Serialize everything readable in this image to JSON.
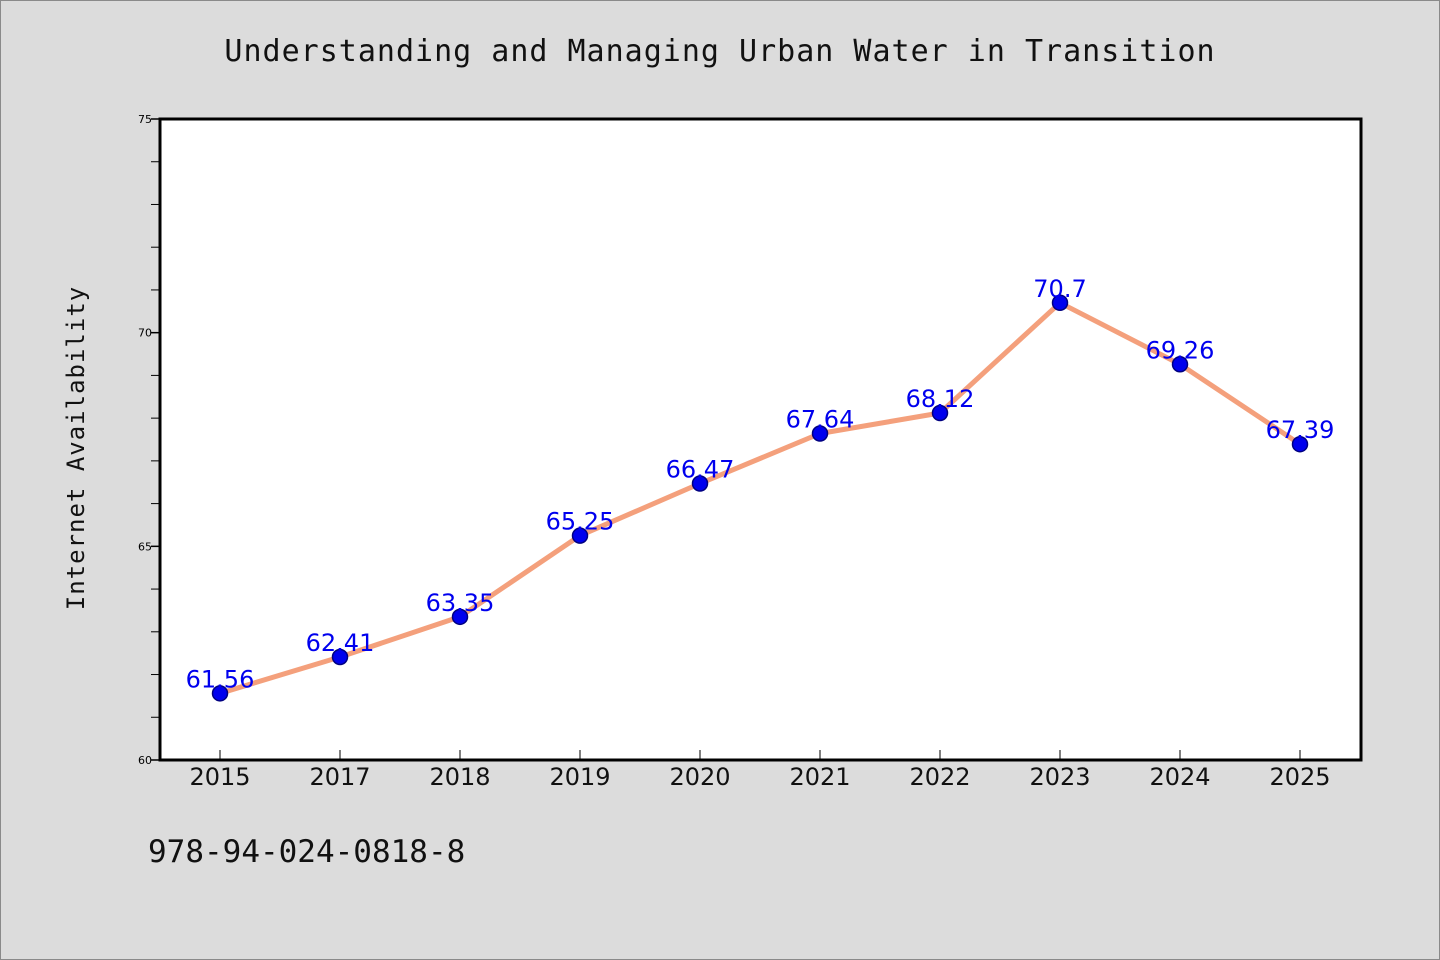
{
  "chart_data": {
    "type": "line",
    "title": "Understanding and Managing Urban Water in Transition",
    "ylabel": "Internet Availability",
    "xlabel": "",
    "categories": [
      "2015",
      "2017",
      "2018",
      "2019",
      "2020",
      "2021",
      "2022",
      "2023",
      "2024",
      "2025"
    ],
    "series": [
      {
        "values": [
          61.56,
          62.41,
          63.35,
          65.25,
          66.47,
          67.64,
          68.12,
          70.7,
          69.26,
          67.39
        ]
      }
    ],
    "data_labels": [
      "61.56",
      "62.41",
      "63.35",
      "65.25",
      "66.47",
      "67.64",
      "68.12",
      "70.7",
      "69.26",
      "67.39"
    ],
    "ylim": [
      60,
      75
    ],
    "y_ticks": [
      "60",
      "65",
      "70",
      "75"
    ],
    "grid": false,
    "legend": "none",
    "colors": {
      "line": "#f4a07c",
      "marker": "#0000ee",
      "marker_edge": "#000080",
      "data_label": "#0000ee",
      "background": "#dcdcdc",
      "plot_area": "#ffffff"
    }
  },
  "footer": {
    "isbn": "978-94-024-0818-8"
  }
}
